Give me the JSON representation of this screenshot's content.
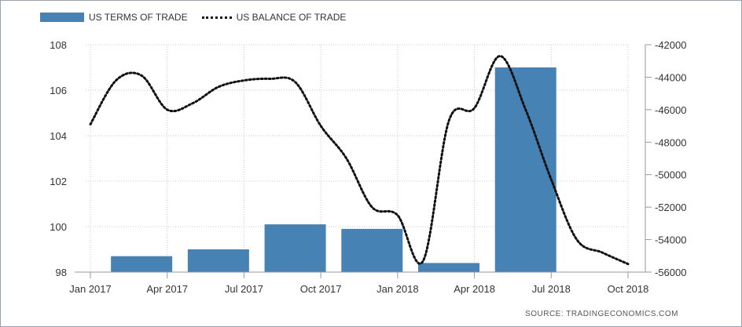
{
  "legend": {
    "bar_label": "US TERMS OF TRADE",
    "line_label": "US BALANCE OF TRADE"
  },
  "source": "SOURCE: TRADINGECONOMICS.COM",
  "colors": {
    "bar": "#4682b4",
    "line": "#111111",
    "grid": "#c8c8c8"
  },
  "chart_data": {
    "type": "bar",
    "x_ticks": [
      "Jan 2017",
      "Apr 2017",
      "Jul 2017",
      "Oct 2017",
      "Jan 2018",
      "Apr 2018",
      "Jul 2018",
      "Oct 2018"
    ],
    "left_axis": {
      "ticks": [
        98,
        100,
        102,
        104,
        106,
        108
      ],
      "ylim": [
        98,
        108
      ]
    },
    "right_axis": {
      "ticks": [
        -42000,
        -44000,
        -46000,
        -48000,
        -50000,
        -52000,
        -54000,
        -56000
      ],
      "ylim": [
        -56000,
        -42000
      ]
    },
    "series": [
      {
        "name": "US TERMS OF TRADE",
        "type": "bar",
        "axis": "left",
        "x": [
          "Mar 2017",
          "Jun 2017",
          "Sep 2017",
          "Dec 2017",
          "Mar 2018",
          "Jun 2018"
        ],
        "values": [
          98.7,
          99.0,
          100.1,
          99.9,
          98.4,
          107.0
        ]
      },
      {
        "name": "US BALANCE OF TRADE",
        "type": "line",
        "style": "dotted",
        "axis": "right",
        "x": [
          "Jan 2017",
          "Feb 2017",
          "Mar 2017",
          "Apr 2017",
          "May 2017",
          "Jun 2017",
          "Jul 2017",
          "Aug 2017",
          "Sep 2017",
          "Oct 2017",
          "Nov 2017",
          "Dec 2017",
          "Jan 2018",
          "Feb 2018",
          "Mar 2018",
          "Apr 2018",
          "May 2018",
          "Jun 2018",
          "Jul 2018",
          "Aug 2018",
          "Sep 2018",
          "Oct 2018"
        ],
        "values": [
          -46900,
          -44200,
          -43900,
          -46000,
          -45600,
          -44600,
          -44200,
          -44100,
          -44300,
          -47000,
          -49000,
          -52000,
          -52500,
          -55300,
          -46700,
          -45900,
          -42700,
          -46000,
          -50300,
          -54000,
          -54800,
          -55500
        ]
      }
    ],
    "grid": true,
    "legend_position": "top-left"
  }
}
